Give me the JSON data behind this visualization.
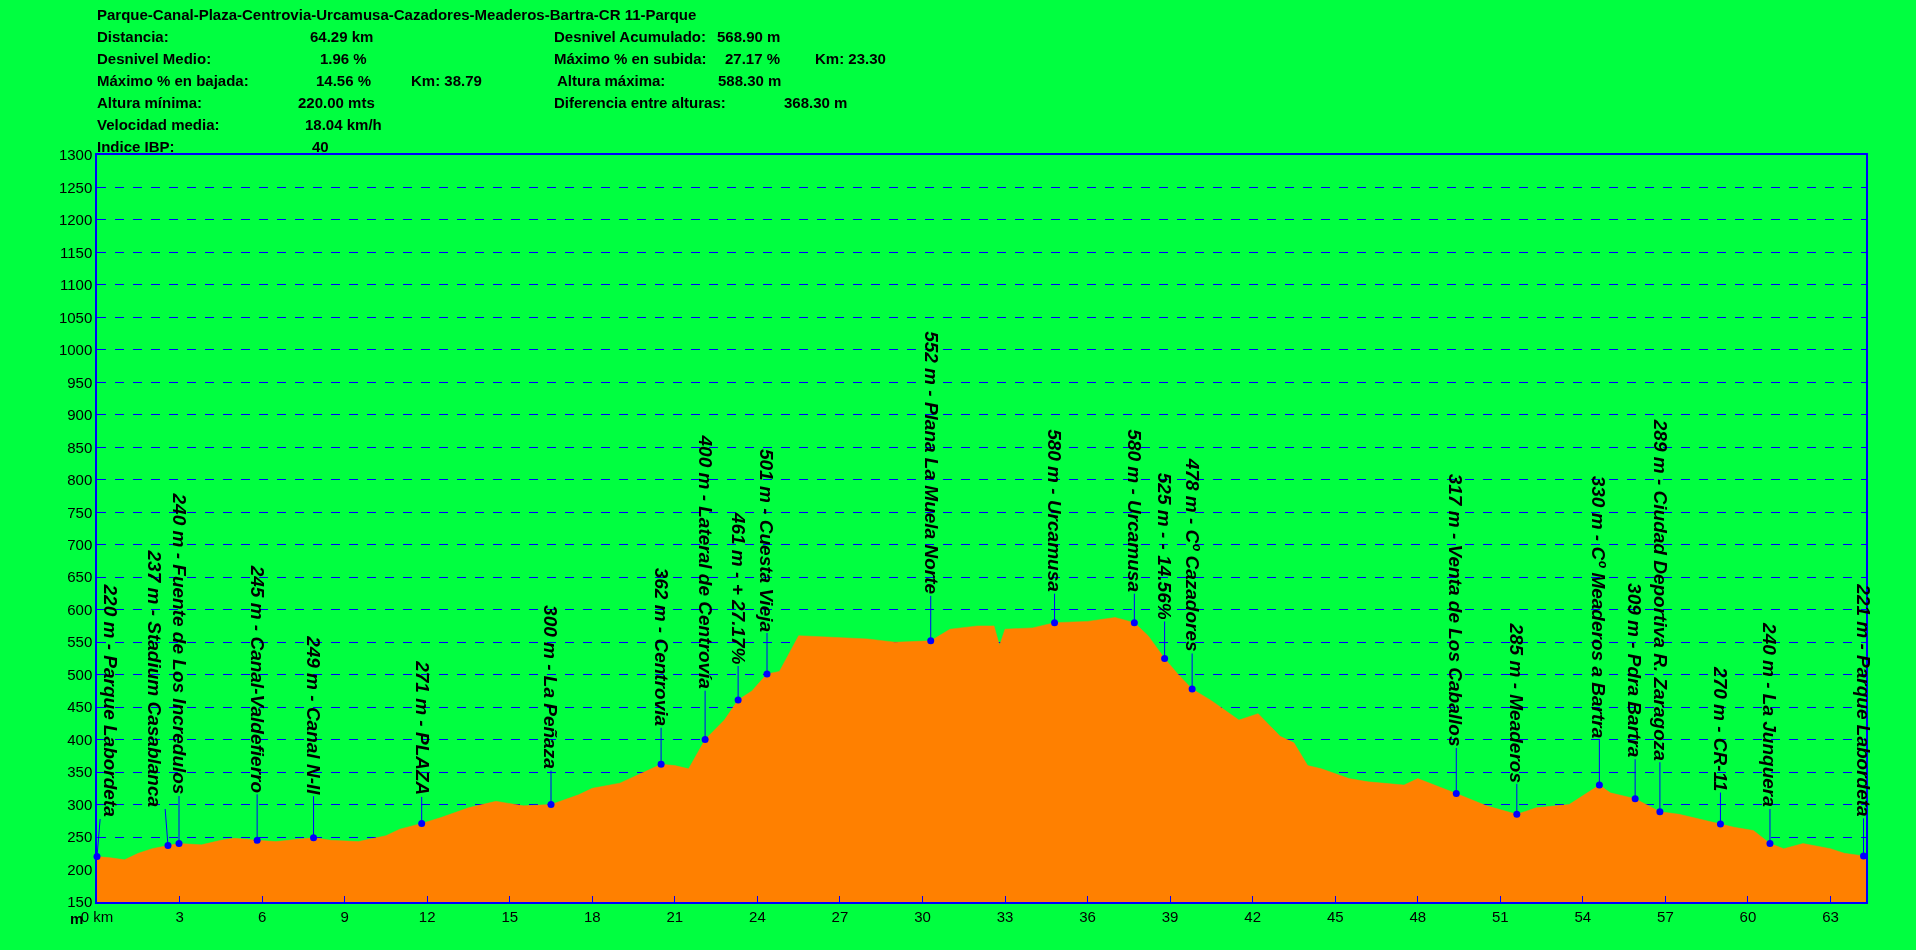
{
  "chart_data": {
    "type": "area",
    "title": "Parque-Canal-Plaza-Centrovia-Urcamusa-Cazadores-Meaderos-Bartra-CR 11-Parque",
    "ylabel": "m",
    "xlim": [
      0,
      64.29
    ],
    "ylim": [
      150,
      1300
    ],
    "xticks": [
      {
        "value": 0,
        "label": "0 km"
      },
      3,
      6,
      9,
      12,
      15,
      18,
      21,
      24,
      27,
      30,
      33,
      36,
      39,
      42,
      45,
      48,
      51,
      54,
      57,
      60,
      63
    ],
    "yticks": [
      150,
      200,
      250,
      300,
      350,
      400,
      450,
      500,
      550,
      600,
      650,
      700,
      750,
      800,
      850,
      900,
      950,
      1000,
      1050,
      1100,
      1150,
      1200,
      1250,
      1300
    ],
    "grid": "y",
    "series": [
      {
        "color": "#ff8000",
        "x": [
          0,
          0.5,
          1.0,
          1.5,
          2.0,
          2.58,
          2.98,
          3.8,
          4.5,
          5.0,
          5.82,
          6.5,
          7.87,
          8.5,
          9.5,
          10.5,
          11.0,
          11.8,
          12.5,
          13.5,
          14.5,
          15.5,
          16.5,
          17.5,
          18.0,
          19.0,
          20.5,
          21.0,
          21.5,
          22.1,
          22.8,
          23.3,
          23.8,
          24.35,
          24.8,
          25.5,
          26.5,
          28,
          29,
          30.3,
          31,
          32,
          32.6,
          32.8,
          33,
          34,
          34.8,
          36,
          37,
          37.7,
          38.2,
          38.8,
          39.3,
          39.8,
          40.5,
          41.5,
          42.2,
          43,
          43.5,
          44,
          44.5,
          45.5,
          46.2,
          47.5,
          48,
          49.4,
          50.5,
          51.6,
          52.3,
          53.5,
          54.6,
          55.0,
          55.9,
          56.8,
          57.5,
          59.0,
          59.5,
          60.2,
          60.8,
          61.3,
          62,
          63,
          63.5,
          64.2,
          64.29
        ],
        "values": [
          220,
          218,
          215,
          225,
          232,
          237,
          240,
          238,
          245,
          248,
          245,
          243,
          249,
          245,
          243,
          252,
          262,
          271,
          280,
          295,
          305,
          298,
          300,
          315,
          325,
          333,
          362,
          360,
          355,
          400,
          430,
          461,
          475,
          501,
          505,
          560,
          558,
          555,
          550,
          552,
          570,
          575,
          575,
          545,
          570,
          572,
          580,
          582,
          588,
          580,
          560,
          525,
          500,
          478,
          460,
          430,
          440,
          405,
          395,
          360,
          355,
          340,
          335,
          330,
          340,
          317,
          298,
          285,
          295,
          300,
          330,
          318,
          309,
          289,
          285,
          270,
          265,
          260,
          240,
          232,
          240,
          232,
          225,
          221,
          221
        ]
      },
      {
        "type": "scatter",
        "color": "#0000ff",
        "marker": "circle",
        "x": [
          0.0,
          2.58,
          2.98,
          5.82,
          7.87,
          11.8,
          16.5,
          20.5,
          22.1,
          23.3,
          24.35,
          30.3,
          34.8,
          37.7,
          38.8,
          39.8,
          49.4,
          51.6,
          54.6,
          55.9,
          56.8,
          59.0,
          60.8,
          64.2
        ],
        "values": [
          220,
          237,
          240,
          245,
          249,
          271,
          300,
          362,
          400,
          461,
          501,
          552,
          580,
          580,
          525,
          478,
          317,
          285,
          330,
          309,
          289,
          270,
          240,
          221
        ]
      }
    ],
    "annotations": [
      "Distancia:",
      "64.29 km",
      "Desnivel Medio:",
      "1.96 %",
      "Máximo % en bajada:",
      "14.56 %",
      "Km: 38.79",
      "Altura mínima:",
      "220.00 mts",
      "Velocidad media:",
      "18.04 km/h",
      "Indice IBP:",
      "40",
      "Desnivel Acumulado:",
      "568.90 m",
      "Máximo % en subida:",
      "27.17 %",
      "Km: 23.30",
      "Altura máxima:",
      "588.30 m",
      "Diferencia entre alturas:",
      "368.30 m",
      {
        "text": "220 m - Parque Labordeta",
        "x": 0.0,
        "y": 220
      },
      {
        "text": "237 m - Stadium Casablanca",
        "x": 2.58,
        "y": 237
      },
      {
        "text": "240 m - Fuente de Los Incredulos",
        "x": 2.98,
        "y": 240
      },
      {
        "text": "245 m - Canal-Valdefierro",
        "x": 5.82,
        "y": 245
      },
      {
        "text": "249 m - Canal N-II",
        "x": 7.87,
        "y": 249
      },
      {
        "text": "271 m - PLAZA",
        "x": 11.8,
        "y": 271
      },
      {
        "text": "300 m - La Peñaza",
        "x": 16.5,
        "y": 300
      },
      {
        "text": "362 m - Centrovia",
        "x": 20.5,
        "y": 362
      },
      {
        "text": "400 m - Lateral de Centrovía",
        "x": 22.1,
        "y": 400
      },
      {
        "text": "461 m - + 27.17%",
        "x": 23.3,
        "y": 461
      },
      {
        "text": "501 m - Cuesta Vieja",
        "x": 24.35,
        "y": 501
      },
      {
        "text": "552 m - Plana La Muela Norte",
        "x": 30.3,
        "y": 552
      },
      {
        "text": "580 m - Urcamusa",
        "x": 34.8,
        "y": 580
      },
      {
        "text": "580 m - Urcamusa",
        "x": 37.7,
        "y": 580
      },
      {
        "text": "525 m - - 14.56%",
        "x": 38.8,
        "y": 525
      },
      {
        "text": "478 m - Cº Cazadores",
        "x": 39.8,
        "y": 478
      },
      {
        "text": "317 m - Venta de Los Caballos",
        "x": 49.4,
        "y": 317
      },
      {
        "text": "285 m - Meaderos",
        "x": 51.6,
        "y": 285
      },
      {
        "text": "330 m - Cº Meaderos a Bartra",
        "x": 54.6,
        "y": 330
      },
      {
        "text": "309 m - Pdra Bartra",
        "x": 55.9,
        "y": 309
      },
      {
        "text": "289 m - Ciudad Deportiva R. Zaragoza",
        "x": 56.8,
        "y": 289
      },
      {
        "text": "270 m - CR-11",
        "x": 59.0,
        "y": 270
      },
      {
        "text": "240 m - La Junquera",
        "x": 60.8,
        "y": 240
      },
      {
        "text": "221 m - Parque Labordeta",
        "x": 64.2,
        "y": 221
      }
    ]
  }
}
